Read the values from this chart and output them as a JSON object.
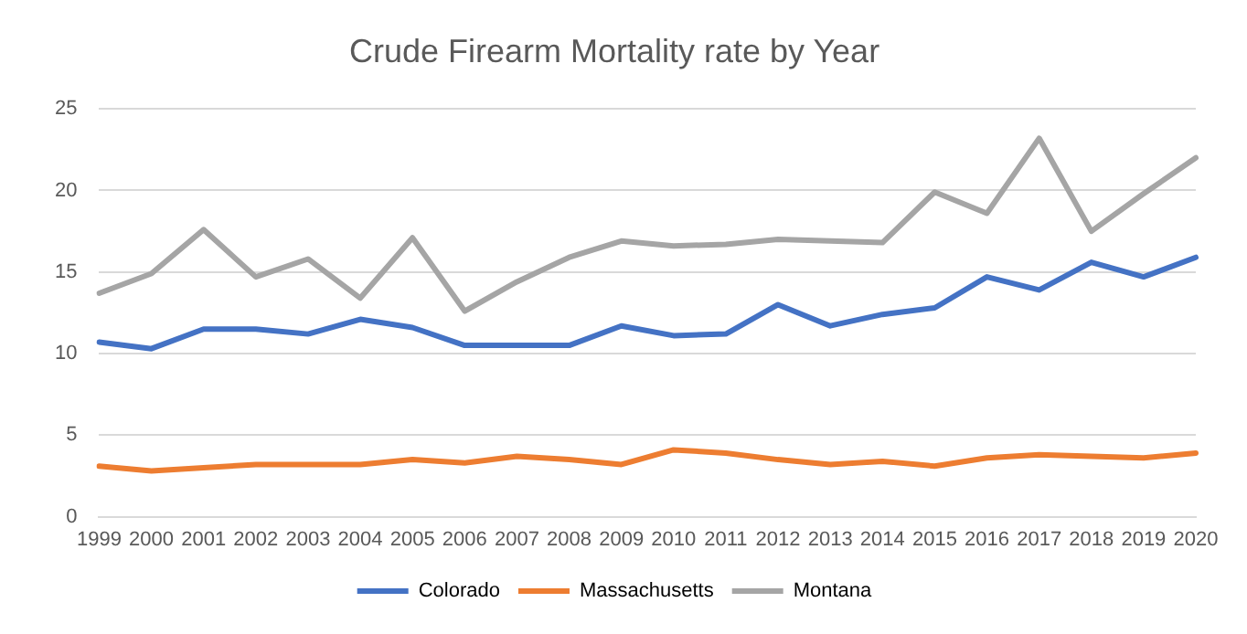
{
  "chart_data": {
    "type": "line",
    "title": "Crude Firearm Mortality rate by Year",
    "categories": [
      "1999",
      "2000",
      "2001",
      "2002",
      "2003",
      "2004",
      "2005",
      "2006",
      "2007",
      "2008",
      "2009",
      "2010",
      "2011",
      "2012",
      "2013",
      "2014",
      "2015",
      "2016",
      "2017",
      "2018",
      "2019",
      "2020"
    ],
    "series": [
      {
        "name": "Colorado",
        "color": "#4472c4",
        "values": [
          10.7,
          10.3,
          11.5,
          11.5,
          11.2,
          12.1,
          11.6,
          10.5,
          10.5,
          10.5,
          11.7,
          11.1,
          11.2,
          13.0,
          11.7,
          12.4,
          12.8,
          14.7,
          13.9,
          15.6,
          14.7,
          15.9
        ]
      },
      {
        "name": "Massachusetts",
        "color": "#ed7d31",
        "values": [
          3.1,
          2.8,
          3.0,
          3.2,
          3.2,
          3.2,
          3.5,
          3.3,
          3.7,
          3.5,
          3.2,
          4.1,
          3.9,
          3.5,
          3.2,
          3.4,
          3.1,
          3.6,
          3.8,
          3.7,
          3.6,
          3.9
        ]
      },
      {
        "name": "Montana",
        "color": "#a5a5a5",
        "values": [
          13.7,
          14.9,
          17.6,
          14.7,
          15.8,
          13.4,
          17.1,
          12.6,
          14.4,
          15.9,
          16.9,
          16.6,
          16.7,
          17.0,
          16.9,
          16.8,
          19.9,
          18.6,
          23.2,
          17.5,
          19.8,
          22.0
        ]
      }
    ],
    "ylim": [
      0,
      25
    ],
    "yticks": [
      0,
      5,
      10,
      15,
      20,
      25
    ],
    "grid": "y",
    "legend": "bottom",
    "marker": "none",
    "line_style": "solid"
  }
}
